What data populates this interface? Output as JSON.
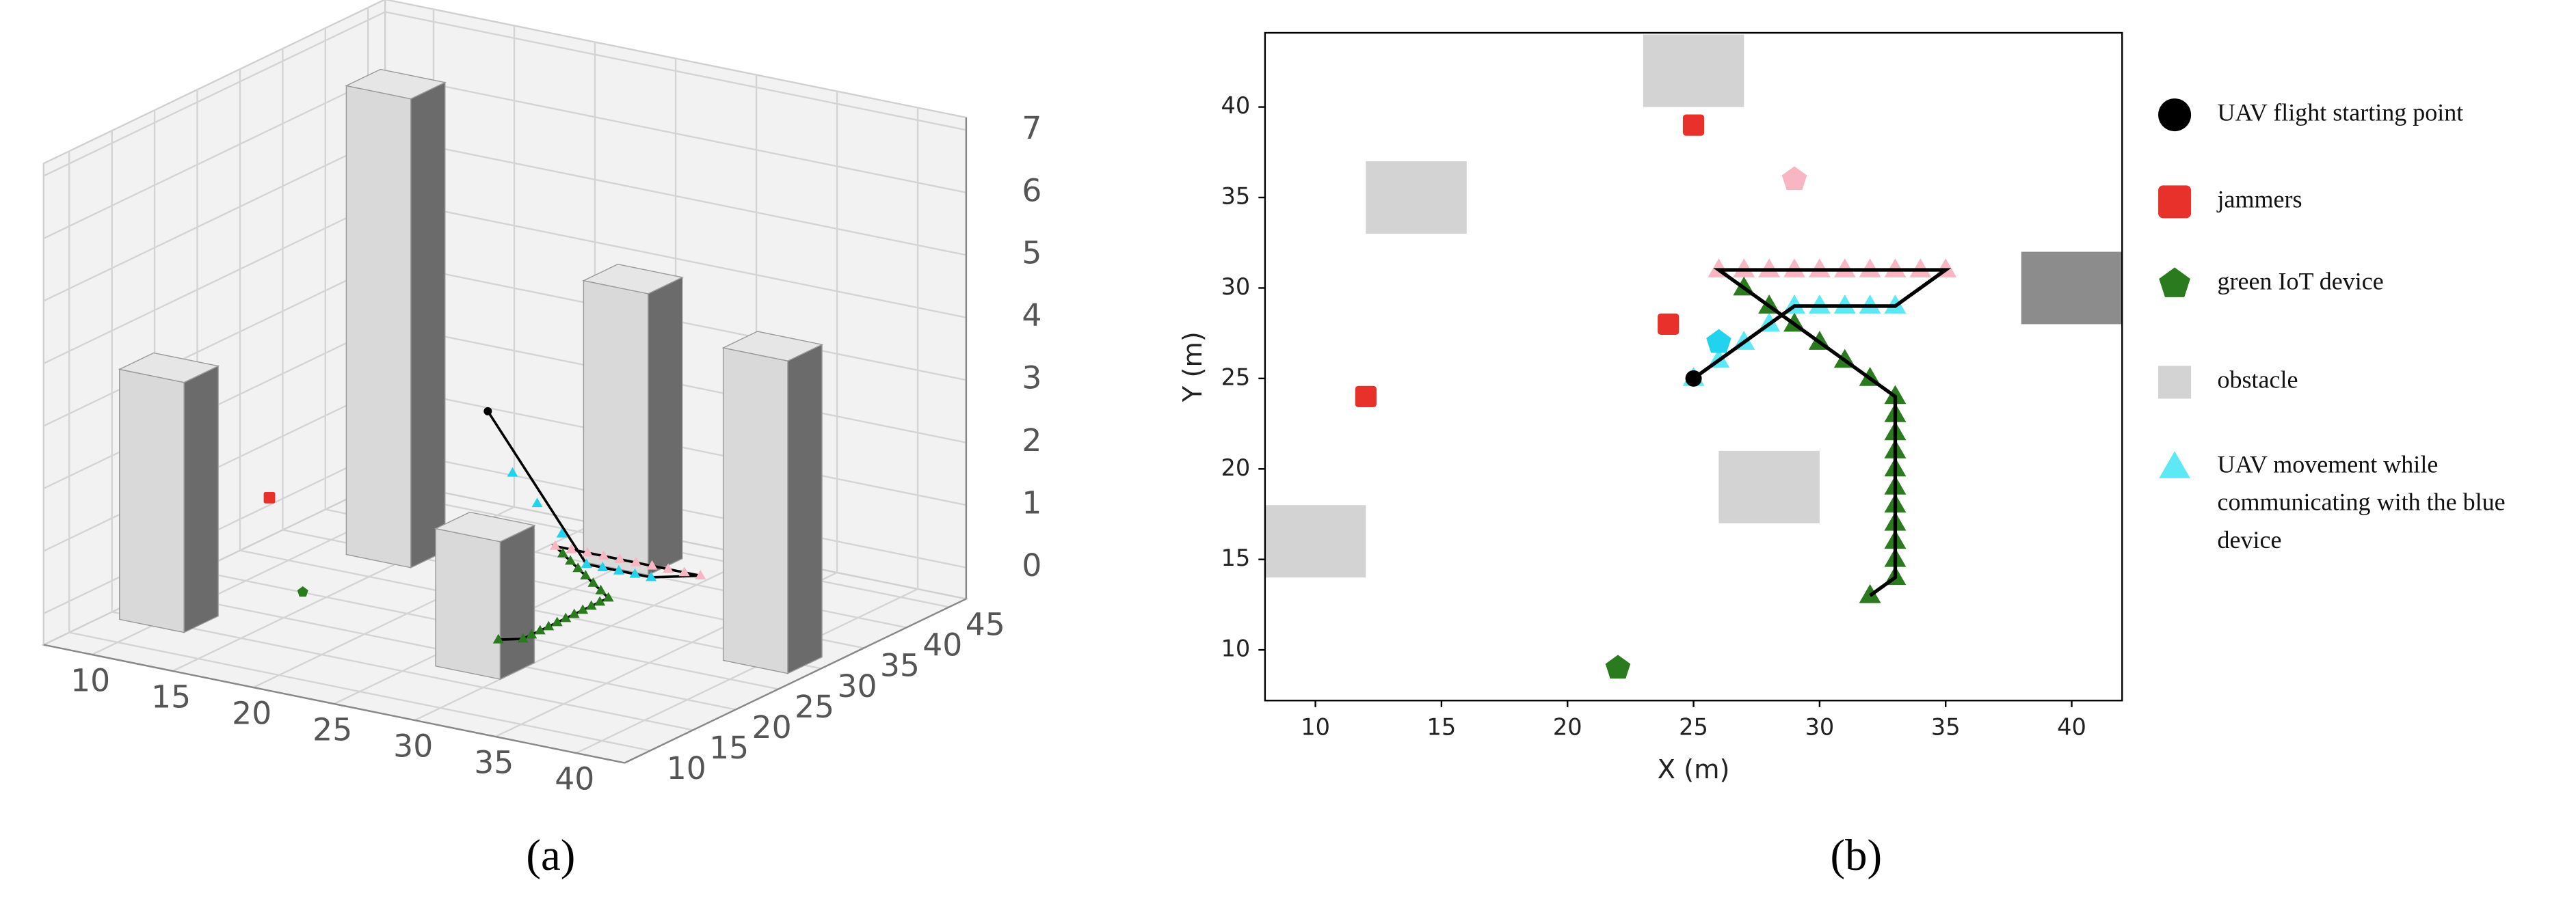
{
  "chart_data": [
    {
      "type": "scatter3d",
      "panel_label": "(a)",
      "xlim": [
        7,
        43
      ],
      "ylim": [
        7,
        47
      ],
      "zlim": [
        -0.5,
        7.2
      ],
      "xticks": [
        10,
        15,
        20,
        25,
        30,
        35,
        40
      ],
      "yticks": [
        10,
        15,
        20,
        25,
        30,
        35,
        40,
        45
      ],
      "zticks": [
        0,
        1,
        2,
        3,
        4,
        5,
        6,
        7
      ],
      "obstacles": {
        "x": [
          23,
          12,
          8,
          26,
          38
        ],
        "y": [
          40,
          33,
          14,
          17,
          28
        ],
        "dx": 4,
        "dy": 4,
        "heights": [
          4,
          7,
          3.5,
          1.7,
          4.5
        ]
      },
      "series": [
        {
          "color": "#000000",
          "marker": "line",
          "x": [
            25,
            29,
            33,
            35,
            26,
            33,
            33,
            32
          ],
          "y": [
            25,
            29,
            29,
            31,
            31,
            24,
            14,
            13
          ],
          "z": [
            3,
            0.5,
            0.5,
            0.5,
            0.5,
            0.5,
            0.5,
            0.5
          ]
        },
        {
          "color": "#f7b6c2",
          "marker": "triangle",
          "x": [
            26,
            27,
            28,
            29,
            30,
            31,
            32,
            33,
            34,
            35
          ],
          "y": [
            31,
            31,
            31,
            31,
            31,
            31,
            31,
            31,
            31,
            31
          ],
          "z": [
            0.5,
            0.5,
            0.5,
            0.5,
            0.5,
            0.5,
            0.5,
            0.5,
            0.5,
            0.5
          ]
        },
        {
          "color": "#22d3ee",
          "marker": "triangle",
          "x": [
            26,
            27,
            28,
            29,
            30,
            31,
            32,
            33
          ],
          "y": [
            26,
            27,
            28,
            29,
            29,
            29,
            29,
            29
          ],
          "z": [
            2,
            1.5,
            1,
            0.5,
            0.5,
            0.5,
            0.5,
            0.5
          ]
        },
        {
          "color": "#2a7a1e",
          "marker": "triangle",
          "x": [
            27,
            28,
            29,
            30,
            31,
            32,
            33,
            33,
            33,
            33,
            33,
            33,
            33,
            33,
            33,
            33,
            33,
            32
          ],
          "y": [
            30,
            29,
            28,
            27,
            26,
            25,
            24,
            23,
            22,
            21,
            20,
            19,
            18,
            17,
            16,
            15,
            14,
            13
          ],
          "z": [
            0.5,
            0.5,
            0.5,
            0.5,
            0.5,
            0.5,
            0.5,
            0.5,
            0.5,
            0.5,
            0.5,
            0.5,
            0.5,
            0.5,
            0.5,
            0.5,
            0.5,
            0.5
          ]
        },
        {
          "color": "#000000",
          "marker": "circle",
          "x": [
            25
          ],
          "y": [
            25
          ],
          "z": [
            3
          ]
        },
        {
          "color": "#e8312a",
          "marker": "square",
          "x": [
            12
          ],
          "y": [
            24
          ],
          "z": [
            1
          ]
        },
        {
          "color": "#2a7a1e",
          "marker": "pentagon",
          "x": [
            22
          ],
          "y": [
            9
          ],
          "z": [
            1
          ]
        }
      ]
    },
    {
      "type": "scatter",
      "panel_label": "(b)",
      "xlabel": "X (m)",
      "ylabel": "Y (m)",
      "xlim": [
        8,
        42
      ],
      "ylim": [
        7.2,
        44.1
      ],
      "xticks": [
        10,
        15,
        20,
        25,
        30,
        35,
        40
      ],
      "yticks": [
        10,
        15,
        20,
        25,
        30,
        35,
        40
      ],
      "series": [
        {
          "name": "UAV flight starting point",
          "color": "#000000",
          "marker": "circle",
          "x": [
            25
          ],
          "y": [
            25
          ]
        },
        {
          "name": "jammers",
          "color": "#e8312a",
          "marker": "square",
          "x": [
            25,
            12,
            24
          ],
          "y": [
            39,
            24,
            28
          ]
        },
        {
          "name": "green IoT device",
          "color": "#2a7a1e",
          "marker": "pentagon",
          "x": [
            22
          ],
          "y": [
            9
          ]
        },
        {
          "name": "obstacle",
          "color": "#d3d3d3",
          "marker": "rect",
          "width": 4,
          "height": 4,
          "colors": [
            "#d3d3d3",
            "#d3d3d3",
            "#d3d3d3",
            "#d3d3d3",
            "#8c8c8c"
          ],
          "x": [
            23,
            12,
            8,
            26,
            38
          ],
          "y": [
            40,
            33,
            14,
            17,
            28
          ]
        },
        {
          "name": "UAV movement while communicating with the blue device",
          "color": "#5ce8f5",
          "marker": "triangle",
          "x": [
            25,
            26,
            27,
            28,
            29,
            30,
            31,
            32,
            33
          ],
          "y": [
            25,
            26,
            27,
            28,
            29,
            29,
            29,
            29,
            29
          ]
        },
        {
          "color": "#f7b6c2",
          "marker": "triangle",
          "x": [
            26,
            27,
            28,
            29,
            30,
            31,
            32,
            33,
            34,
            35
          ],
          "y": [
            31,
            31,
            31,
            31,
            31,
            31,
            31,
            31,
            31,
            31
          ]
        },
        {
          "color": "#2a7a1e",
          "marker": "triangle",
          "x": [
            27,
            28,
            29,
            30,
            31,
            32,
            33,
            33,
            33,
            33,
            33,
            33,
            33,
            33,
            33,
            33,
            33,
            32
          ],
          "y": [
            30,
            29,
            28,
            27,
            26,
            25,
            24,
            23,
            22,
            21,
            20,
            19,
            18,
            17,
            16,
            15,
            14,
            13
          ]
        },
        {
          "color": "#000000",
          "marker": "line",
          "x": [
            25,
            29,
            33,
            35,
            26,
            33,
            33,
            32
          ],
          "y": [
            25,
            29,
            29,
            31,
            31,
            24,
            14,
            13
          ]
        },
        {
          "color": "#22d3ee",
          "marker": "pentagon",
          "x": [
            26
          ],
          "y": [
            27
          ]
        },
        {
          "color": "#f7b6c2",
          "marker": "pentagon",
          "x": [
            29
          ],
          "y": [
            36
          ]
        }
      ]
    }
  ]
}
